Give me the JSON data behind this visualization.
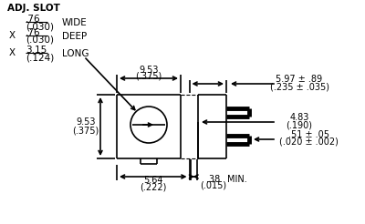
{
  "bg_color": "#ffffff",
  "line_color": "#000000",
  "text_color": "#000000",
  "fig_w": 4.0,
  "fig_h": 2.46,
  "dpi": 100,
  "annotations": {
    "adj_slot": "ADJ. SLOT",
    "wide_num": ".76",
    "wide_den": "(.030)",
    "wide_label": "WIDE",
    "deep_num": ".76",
    "deep_den": "(.030)",
    "deep_label": "DEEP",
    "long_num": "3.15",
    "long_den": "(.124)",
    "long_label": "LONG",
    "top_num": "9.53",
    "top_den": "(.375)",
    "ht_num": "9.53",
    "ht_den": "(.375)",
    "bot_num": "5.64",
    "bot_den": "(.222)",
    "rt_num": "5.97 ± .89",
    "rt_den": "(.235 ± .035)",
    "rm_num": "4.83",
    "rm_den": "(.190)",
    "rb_num": ".51 ± .05",
    "rb_den": "(.020 ± .002)",
    "min_num": ".38",
    "min_den": "(.015)",
    "min_label": "MIN."
  }
}
